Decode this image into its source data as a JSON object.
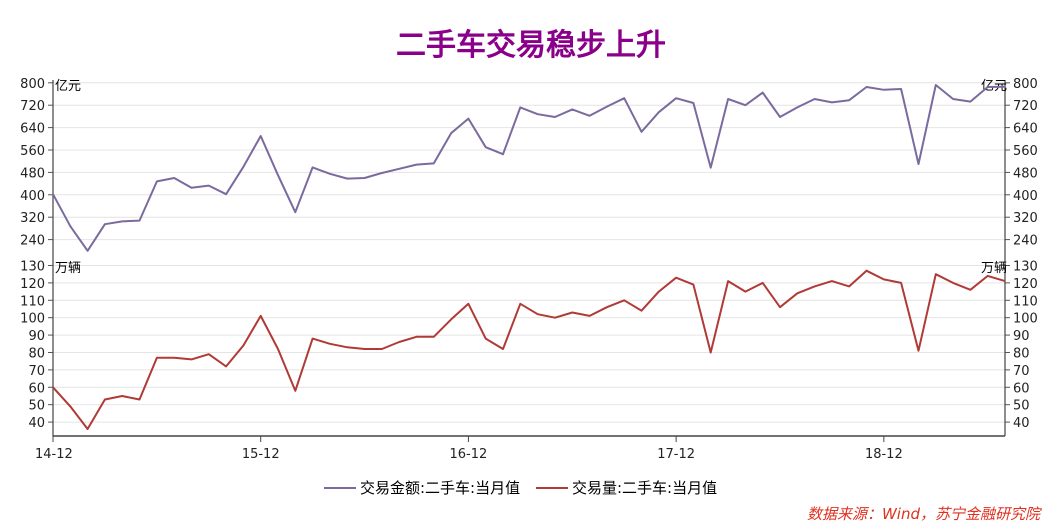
{
  "title": "二手车交易稳步上升",
  "source": "数据来源：Wind，苏宁金融研究院",
  "chart_data": {
    "type": "line",
    "title": "二手车交易稳步上升",
    "x": [
      "2014-12",
      "2015-01",
      "2015-02",
      "2015-03",
      "2015-04",
      "2015-05",
      "2015-06",
      "2015-07",
      "2015-08",
      "2015-09",
      "2015-10",
      "2015-11",
      "2015-12",
      "2016-01",
      "2016-02",
      "2016-03",
      "2016-04",
      "2016-05",
      "2016-06",
      "2016-07",
      "2016-08",
      "2016-09",
      "2016-10",
      "2016-11",
      "2016-12",
      "2017-01",
      "2017-02",
      "2017-03",
      "2017-04",
      "2017-05",
      "2017-06",
      "2017-07",
      "2017-08",
      "2017-09",
      "2017-10",
      "2017-11",
      "2017-12",
      "2018-01",
      "2018-02",
      "2018-03",
      "2018-04",
      "2018-05",
      "2018-06",
      "2018-07",
      "2018-08",
      "2018-09",
      "2018-10",
      "2018-11",
      "2018-12",
      "2019-01",
      "2019-02",
      "2019-03",
      "2019-04",
      "2019-05",
      "2019-06",
      "2019-07"
    ],
    "xticks": [
      "14-12",
      "15-12",
      "16-12",
      "17-12",
      "18-12"
    ],
    "panels": [
      {
        "unit": "亿元",
        "ylim": [
          160,
          810
        ],
        "yticks": [
          240,
          320,
          400,
          480,
          560,
          640,
          720,
          800
        ],
        "series": [
          {
            "name": "交易金额:二手车:当月值",
            "color": "#7b6a9e",
            "values": [
              402,
              288,
              200,
              295,
              305,
              308,
              448,
              460,
              425,
              433,
              402,
              500,
              610,
              470,
              338,
              498,
              475,
              458,
              460,
              478,
              493,
              508,
              512,
              620,
              672,
              570,
              545,
              712,
              688,
              678,
              705,
              682,
              715,
              745,
              625,
              695,
              745,
              728,
              497,
              742,
              720,
              765,
              678,
              712,
              742,
              730,
              738,
              785,
              775,
              778,
              510,
              792,
              742,
              733,
              785,
              786
            ]
          }
        ]
      },
      {
        "unit": "万辆",
        "ylim": [
          32,
          132
        ],
        "yticks": [
          40,
          50,
          60,
          70,
          80,
          90,
          100,
          110,
          120,
          130
        ],
        "series": [
          {
            "name": "交易量:二手车:当月值",
            "color": "#b03a36",
            "values": [
              60,
              49,
              36,
              53,
              55,
              53,
              77,
              77,
              76,
              79,
              72,
              84,
              101,
              82,
              58,
              88,
              85,
              83,
              82,
              82,
              86,
              89,
              89,
              99,
              108,
              88,
              82,
              108,
              102,
              100,
              103,
              101,
              106,
              110,
              104,
              115,
              123,
              119,
              80,
              121,
              115,
              120,
              106,
              114,
              118,
              121,
              118,
              127,
              122,
              120,
              81,
              125,
              120,
              116,
              124,
              121
            ]
          }
        ]
      }
    ],
    "legend": {
      "position": "bottom",
      "entries": [
        "交易金额:二手车:当月值",
        "交易量:二手车:当月值"
      ]
    },
    "grid": true
  }
}
